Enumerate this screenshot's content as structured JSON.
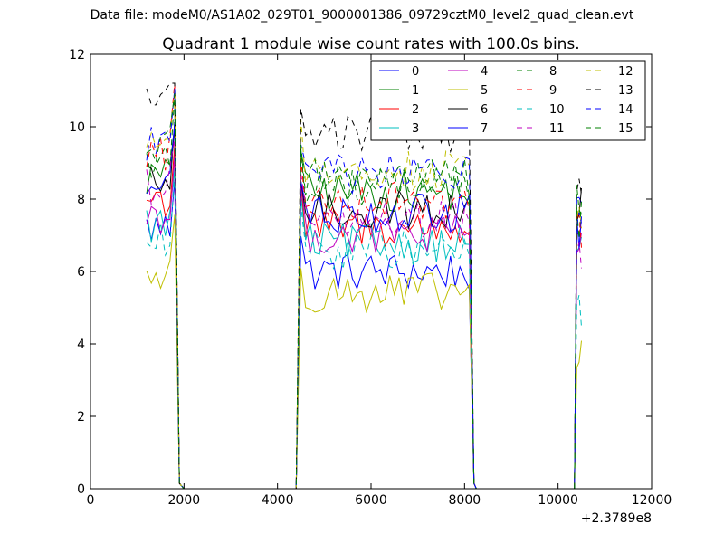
{
  "figure": {
    "suptitle": "Data file: modeM0/AS1A02_029T01_9000001386_09729cztM0_level2_quad_clean.evt",
    "background": "#ffffff"
  },
  "chart_data": {
    "type": "line",
    "title": "Quadrant 1 module wise count rates with 100.0s bins.",
    "xlabel": "",
    "ylabel": "",
    "xlim": [
      0,
      12000
    ],
    "ylim": [
      0,
      12
    ],
    "x_offset_label": "+2.3789e8",
    "x_ticks": [
      0,
      2000,
      4000,
      6000,
      8000,
      10000,
      12000
    ],
    "x_tick_labels": [
      "0",
      "2000",
      "4000",
      "6000",
      "8000",
      "10000",
      "12000"
    ],
    "y_ticks": [
      0,
      2,
      4,
      6,
      8,
      10,
      12
    ],
    "y_tick_labels": [
      "0",
      "2",
      "4",
      "6",
      "8",
      "10",
      "12"
    ],
    "legend": {
      "location": "top-right",
      "columns": 4
    },
    "segments": [
      {
        "x_start": 1200,
        "x_end": 1800,
        "step": 100,
        "gap_until": 2000
      },
      {
        "x_start": 4500,
        "x_end": 8100,
        "step": 100,
        "rise_from": 4400,
        "gap_until": 8250
      },
      {
        "x_start": 10400,
        "x_end": 10500,
        "step": 50,
        "rise_from": 10350
      }
    ],
    "series": [
      {
        "name": "0",
        "color": "#0000ff",
        "style": "solid",
        "segment_levels": [
          7.2,
          6.0,
          7.5
        ]
      },
      {
        "name": "1",
        "color": "#008000",
        "style": "solid",
        "segment_levels": [
          8.6,
          8.2,
          7.2
        ]
      },
      {
        "name": "2",
        "color": "#ff0000",
        "style": "solid",
        "segment_levels": [
          8.0,
          7.2,
          6.8
        ]
      },
      {
        "name": "3",
        "color": "#00bfbf",
        "style": "solid",
        "segment_levels": [
          7.3,
          6.8,
          6.5
        ]
      },
      {
        "name": "4",
        "color": "#bf00bf",
        "style": "solid",
        "segment_levels": [
          7.6,
          7.0,
          6.6
        ]
      },
      {
        "name": "5",
        "color": "#bfbf00",
        "style": "solid",
        "segment_levels": [
          5.9,
          5.4,
          3.6
        ]
      },
      {
        "name": "6",
        "color": "#000000",
        "style": "solid",
        "segment_levels": [
          8.4,
          7.7,
          7.8
        ]
      },
      {
        "name": "7",
        "color": "#0000ff",
        "style": "solid",
        "segment_levels": [
          8.3,
          7.6,
          7.0
        ]
      },
      {
        "name": "8",
        "color": "#008000",
        "style": "dashed",
        "segment_levels": [
          9.0,
          8.4,
          7.4
        ]
      },
      {
        "name": "9",
        "color": "#ff0000",
        "style": "dashed",
        "segment_levels": [
          9.3,
          8.0,
          7.2
        ]
      },
      {
        "name": "10",
        "color": "#00bfbf",
        "style": "dashed",
        "segment_levels": [
          6.8,
          6.6,
          5.0
        ]
      },
      {
        "name": "11",
        "color": "#bf00bf",
        "style": "dashed",
        "segment_levels": [
          8.4,
          7.4,
          6.6
        ]
      },
      {
        "name": "12",
        "color": "#bfbf00",
        "style": "dashed",
        "segment_levels": [
          9.7,
          8.8,
          7.7
        ]
      },
      {
        "name": "13",
        "color": "#000000",
        "style": "dashed",
        "segment_levels": [
          10.9,
          9.8,
          8.6
        ]
      },
      {
        "name": "14",
        "color": "#0000ff",
        "style": "dashed",
        "segment_levels": [
          9.6,
          8.7,
          7.8
        ]
      },
      {
        "name": "15",
        "color": "#008000",
        "style": "dashed",
        "segment_levels": [
          9.4,
          8.6,
          8.0
        ]
      }
    ]
  }
}
